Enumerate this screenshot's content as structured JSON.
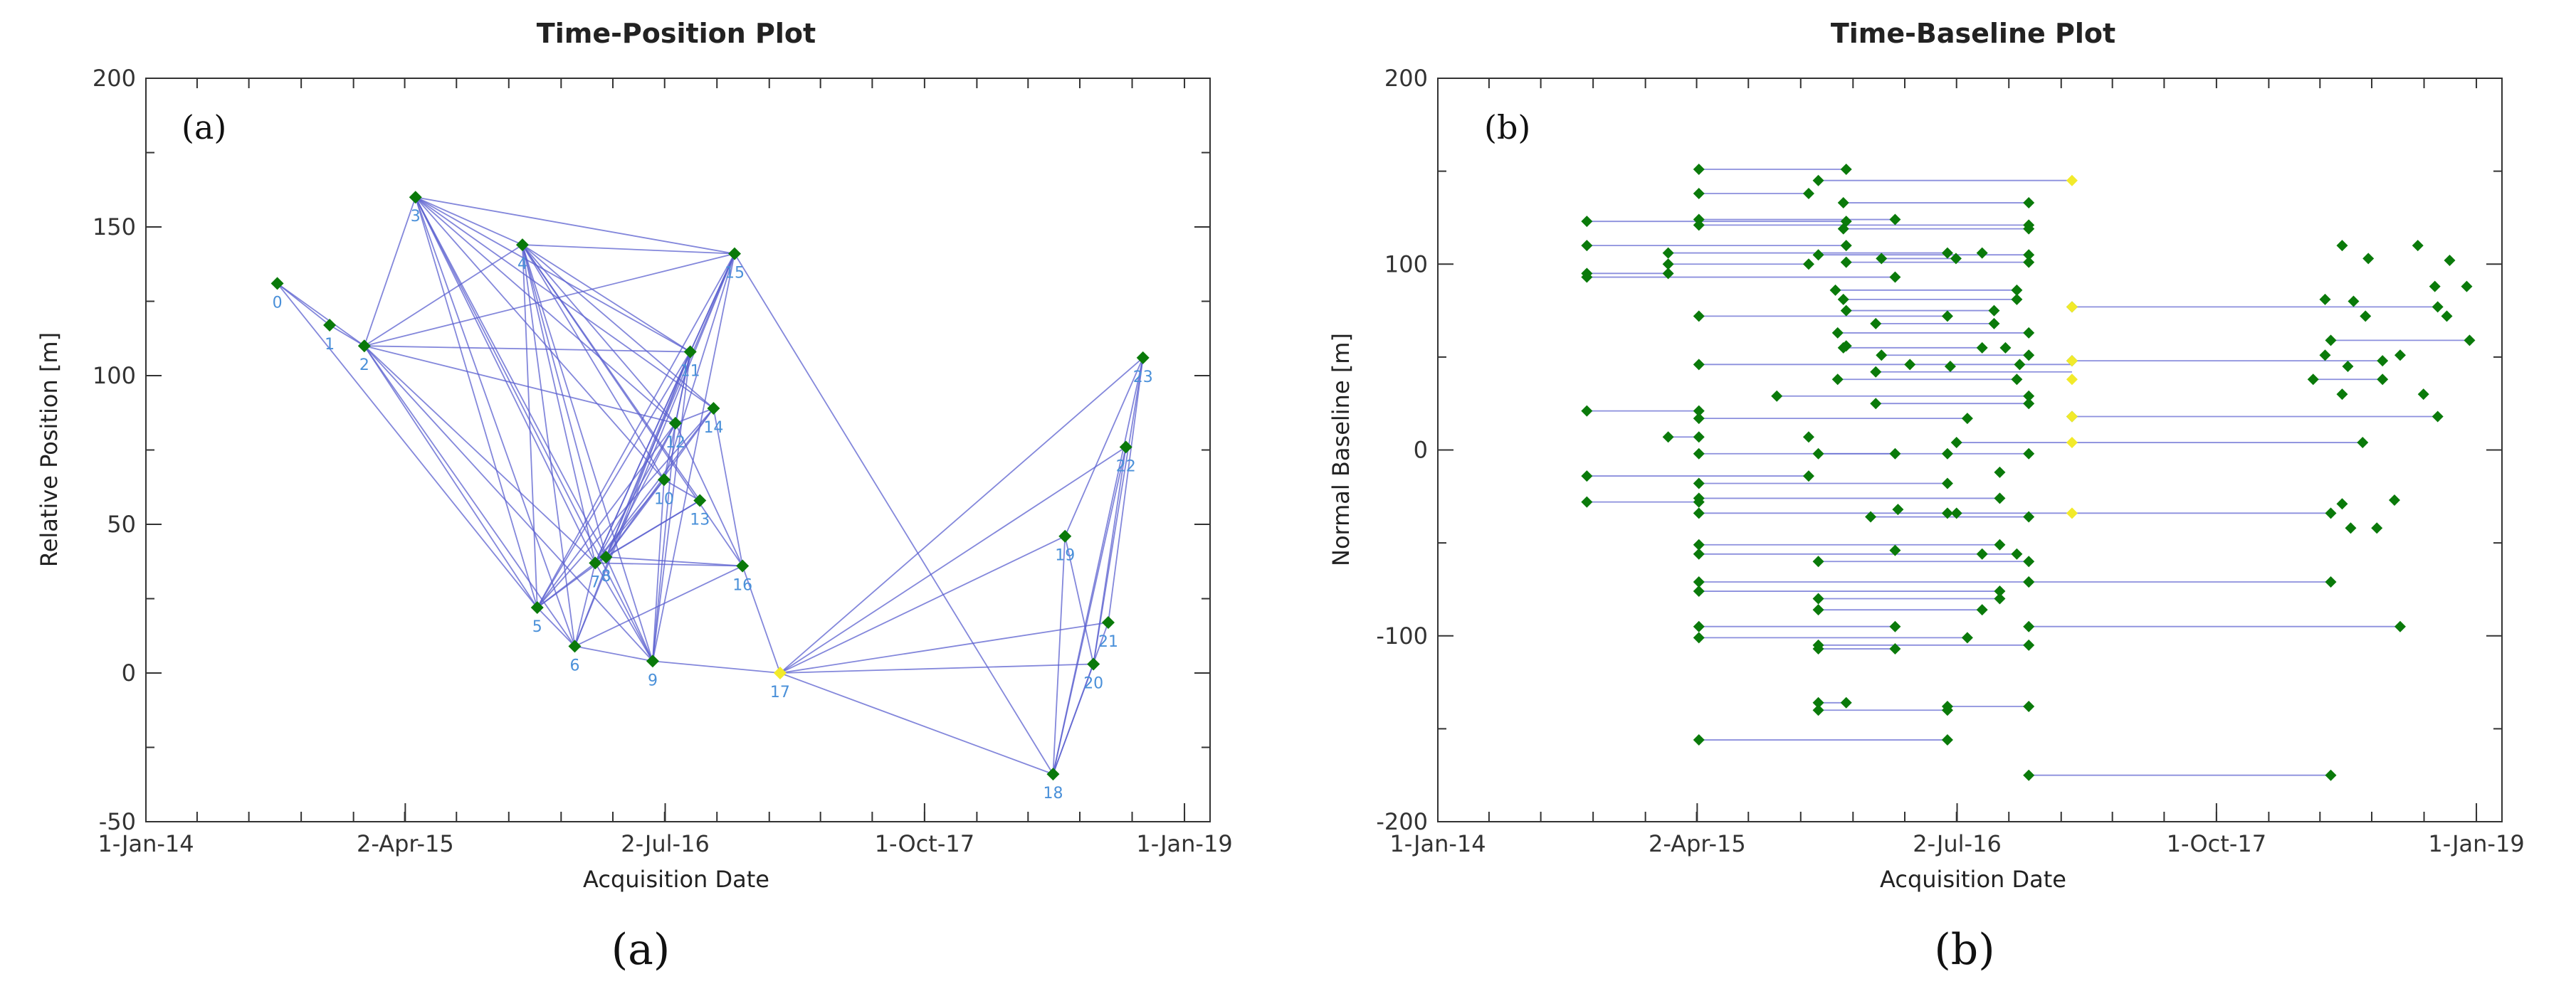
{
  "colors": {
    "edge": "#5a5fcf",
    "point": "#0a7a0a",
    "reference": "#f2ea2a",
    "label": "#4a90d9"
  },
  "chart_data": [
    {
      "type": "scatter",
      "panel": "(a)",
      "title": "Time-Position Plot",
      "xlabel": "Acquisition Date",
      "ylabel": "Relative Position [m]",
      "x_ticks": [
        "1-Jan-14",
        "2-Apr-15",
        "2-Jul-16",
        "1-Oct-17",
        "1-Jan-19"
      ],
      "xlim": [
        "2014-01-01",
        "2019-02-15"
      ],
      "ylim": [
        -50,
        200
      ],
      "y_ticks": [
        "-50",
        "0",
        "50",
        "100",
        "150",
        "200"
      ],
      "reference_point": "17",
      "points": [
        {
          "id": "0",
          "date": "2014-08-20",
          "y": 131
        },
        {
          "id": "1",
          "date": "2014-11-20",
          "y": 117
        },
        {
          "id": "2",
          "date": "2015-01-20",
          "y": 110
        },
        {
          "id": "3",
          "date": "2015-04-20",
          "y": 160
        },
        {
          "id": "4",
          "date": "2015-10-25",
          "y": 144
        },
        {
          "id": "5",
          "date": "2015-11-20",
          "y": 22
        },
        {
          "id": "6",
          "date": "2016-01-25",
          "y": 9
        },
        {
          "id": "7",
          "date": "2016-03-01",
          "y": 37
        },
        {
          "id": "8",
          "date": "2016-03-20",
          "y": 39
        },
        {
          "id": "9",
          "date": "2016-06-10",
          "y": 4
        },
        {
          "id": "10",
          "date": "2016-06-30",
          "y": 65
        },
        {
          "id": "11",
          "date": "2016-08-15",
          "y": 108
        },
        {
          "id": "12",
          "date": "2016-07-20",
          "y": 84
        },
        {
          "id": "13",
          "date": "2016-09-01",
          "y": 58
        },
        {
          "id": "14",
          "date": "2016-09-25",
          "y": 89
        },
        {
          "id": "15",
          "date": "2016-11-01",
          "y": 141
        },
        {
          "id": "16",
          "date": "2016-11-15",
          "y": 36
        },
        {
          "id": "17",
          "date": "2017-01-20",
          "y": 0
        },
        {
          "id": "18",
          "date": "2018-05-15",
          "y": -34
        },
        {
          "id": "19",
          "date": "2018-06-05",
          "y": 46
        },
        {
          "id": "20",
          "date": "2018-07-25",
          "y": 3
        },
        {
          "id": "21",
          "date": "2018-08-20",
          "y": 17
        },
        {
          "id": "22",
          "date": "2018-09-20",
          "y": 76
        },
        {
          "id": "23",
          "date": "2018-10-20",
          "y": 106
        }
      ],
      "edges": [
        [
          "0",
          "1"
        ],
        [
          "0",
          "2"
        ],
        [
          "0",
          "5"
        ],
        [
          "1",
          "2"
        ],
        [
          "2",
          "3"
        ],
        [
          "2",
          "4"
        ],
        [
          "2",
          "5"
        ],
        [
          "2",
          "6"
        ],
        [
          "2",
          "7"
        ],
        [
          "2",
          "9"
        ],
        [
          "2",
          "11"
        ],
        [
          "2",
          "12"
        ],
        [
          "2",
          "15"
        ],
        [
          "3",
          "4"
        ],
        [
          "3",
          "5"
        ],
        [
          "3",
          "6"
        ],
        [
          "3",
          "7"
        ],
        [
          "3",
          "8"
        ],
        [
          "3",
          "9"
        ],
        [
          "3",
          "10"
        ],
        [
          "3",
          "11"
        ],
        [
          "3",
          "12"
        ],
        [
          "3",
          "14"
        ],
        [
          "3",
          "15"
        ],
        [
          "4",
          "5"
        ],
        [
          "4",
          "6"
        ],
        [
          "4",
          "7"
        ],
        [
          "4",
          "8"
        ],
        [
          "4",
          "9"
        ],
        [
          "4",
          "10"
        ],
        [
          "4",
          "11"
        ],
        [
          "4",
          "12"
        ],
        [
          "4",
          "13"
        ],
        [
          "4",
          "14"
        ],
        [
          "4",
          "15"
        ],
        [
          "4",
          "16"
        ],
        [
          "5",
          "6"
        ],
        [
          "5",
          "7"
        ],
        [
          "5",
          "8"
        ],
        [
          "5",
          "11"
        ],
        [
          "5",
          "12"
        ],
        [
          "5",
          "14"
        ],
        [
          "6",
          "7"
        ],
        [
          "6",
          "9"
        ],
        [
          "6",
          "11"
        ],
        [
          "6",
          "15"
        ],
        [
          "7",
          "8"
        ],
        [
          "7",
          "9"
        ],
        [
          "7",
          "10"
        ],
        [
          "7",
          "11"
        ],
        [
          "7",
          "12"
        ],
        [
          "7",
          "13"
        ],
        [
          "7",
          "14"
        ],
        [
          "7",
          "15"
        ],
        [
          "7",
          "16"
        ],
        [
          "8",
          "9"
        ],
        [
          "8",
          "10"
        ],
        [
          "8",
          "11"
        ],
        [
          "8",
          "12"
        ],
        [
          "8",
          "13"
        ],
        [
          "8",
          "14"
        ],
        [
          "8",
          "15"
        ],
        [
          "8",
          "16"
        ],
        [
          "9",
          "10"
        ],
        [
          "9",
          "11"
        ],
        [
          "9",
          "12"
        ],
        [
          "9",
          "15"
        ],
        [
          "9",
          "17"
        ],
        [
          "10",
          "11"
        ],
        [
          "10",
          "13"
        ],
        [
          "10",
          "15"
        ],
        [
          "11",
          "12"
        ],
        [
          "11",
          "15"
        ],
        [
          "12",
          "14"
        ],
        [
          "12",
          "16"
        ],
        [
          "14",
          "16"
        ],
        [
          "15",
          "18"
        ],
        [
          "16",
          "17"
        ],
        [
          "17",
          "18"
        ],
        [
          "17",
          "19"
        ],
        [
          "17",
          "20"
        ],
        [
          "17",
          "21"
        ],
        [
          "17",
          "22"
        ],
        [
          "17",
          "23"
        ],
        [
          "6",
          "16"
        ],
        [
          "5",
          "15"
        ],
        [
          "18",
          "19"
        ],
        [
          "18",
          "20"
        ],
        [
          "18",
          "21"
        ],
        [
          "18",
          "22"
        ],
        [
          "18",
          "23"
        ],
        [
          "19",
          "20"
        ],
        [
          "19",
          "23"
        ],
        [
          "20",
          "22"
        ],
        [
          "21",
          "23"
        ],
        [
          "20",
          "23"
        ]
      ]
    },
    {
      "type": "scatter",
      "panel": "(b)",
      "title": "Time-Baseline Plot",
      "xlabel": "Acquisition Date",
      "ylabel": "Normal Baseline [m]",
      "x_ticks": [
        "1-Jan-14",
        "2-Apr-15",
        "2-Jul-16",
        "1-Oct-17",
        "1-Jan-19"
      ],
      "xlim": [
        "2014-01-01",
        "2019-02-15"
      ],
      "ylim": [
        -200,
        200
      ],
      "y_ticks": [
        "-200",
        "-100",
        "0",
        "100",
        "200"
      ],
      "reference_color": "yellow",
      "pairs": [
        [
          "2015-04-05",
          151,
          "2015-12-20",
          151
        ],
        [
          "2015-11-01",
          145,
          "2017-01-20",
          145
        ],
        [
          "2015-04-05",
          138,
          "2015-10-15",
          138
        ],
        [
          "2015-12-15",
          133,
          "2016-11-05",
          133
        ],
        [
          "2014-09-20",
          123,
          "2015-12-20",
          123
        ],
        [
          "2015-04-05",
          124,
          "2016-03-15",
          124
        ],
        [
          "2015-04-05",
          121,
          "2016-11-05",
          121
        ],
        [
          "2015-12-15",
          119,
          "2016-11-05",
          119
        ],
        [
          "2014-09-20",
          110,
          "2015-12-20",
          110
        ],
        [
          "2014-09-20",
          95,
          "2015-02-10",
          95
        ],
        [
          "2015-02-10",
          106,
          "2016-06-15",
          106
        ],
        [
          "2015-11-01",
          105,
          "2016-11-05",
          105
        ],
        [
          "2015-02-10",
          100,
          "2015-10-15",
          100
        ],
        [
          "2015-12-20",
          101,
          "2016-11-05",
          101
        ],
        [
          "2016-02-20",
          103,
          "2016-06-30",
          103
        ],
        [
          "2014-09-20",
          93,
          "2016-03-15",
          93
        ],
        [
          "2015-12-01",
          86,
          "2016-10-15",
          86
        ],
        [
          "2015-12-15",
          81,
          "2016-10-15",
          81
        ],
        [
          "2017-01-20",
          77,
          "2018-10-25",
          77
        ],
        [
          "2015-12-20",
          75,
          "2016-09-05",
          75
        ],
        [
          "2016-02-10",
          68,
          "2016-09-05",
          68
        ],
        [
          "2015-04-05",
          72,
          "2016-06-15",
          72
        ],
        [
          "2015-12-05",
          63,
          "2016-11-05",
          63
        ],
        [
          "2015-12-15",
          55,
          "2016-08-15",
          55
        ],
        [
          "2016-02-20",
          51,
          "2016-11-05",
          51
        ],
        [
          "2018-04-20",
          59,
          "2018-12-20",
          59
        ],
        [
          "2015-04-05",
          46,
          "2017-01-20",
          46
        ],
        [
          "2017-01-20",
          48,
          "2018-07-20",
          48
        ],
        [
          "2016-02-10",
          42,
          "2017-01-20",
          42
        ],
        [
          "2015-12-05",
          38,
          "2016-10-15",
          38
        ],
        [
          "2018-03-20",
          38,
          "2018-07-20",
          38
        ],
        [
          "2016-02-10",
          25,
          "2016-11-05",
          25
        ],
        [
          "2015-08-20",
          29,
          "2016-11-05",
          29
        ],
        [
          "2014-09-20",
          21,
          "2015-04-05",
          21
        ],
        [
          "2017-01-20",
          18,
          "2018-10-25",
          18
        ],
        [
          "2015-04-05",
          17,
          "2016-07-20",
          17
        ],
        [
          "2015-02-10",
          7,
          "2015-04-05",
          7
        ],
        [
          "2016-07-01",
          4,
          "2018-06-15",
          4
        ],
        [
          "2015-04-05",
          -2,
          "2016-03-15",
          -2
        ],
        [
          "2015-11-01",
          -2,
          "2016-11-05",
          -2
        ],
        [
          "2014-09-20",
          -14,
          "2015-10-15",
          -14
        ],
        [
          "2015-04-05",
          -18,
          "2016-06-15",
          -18
        ],
        [
          "2014-09-20",
          -28,
          "2015-04-05",
          -28
        ],
        [
          "2015-04-05",
          -26,
          "2016-09-15",
          -26
        ],
        [
          "2015-04-05",
          -34,
          "2016-06-15",
          -34
        ],
        [
          "2016-02-01",
          -36,
          "2016-11-05",
          -36
        ],
        [
          "2016-07-01",
          -34,
          "2018-04-20",
          -34
        ],
        [
          "2015-04-05",
          -51,
          "2016-09-15",
          -51
        ],
        [
          "2015-04-05",
          -56,
          "2016-10-15",
          -56
        ],
        [
          "2015-11-01",
          -60,
          "2016-11-05",
          -60
        ],
        [
          "2015-04-05",
          -71,
          "2016-11-05",
          -71
        ],
        [
          "2016-11-05",
          -71,
          "2018-04-20",
          -71
        ],
        [
          "2015-04-05",
          -76,
          "2016-09-15",
          -76
        ],
        [
          "2015-11-01",
          -80,
          "2016-09-15",
          -80
        ],
        [
          "2015-11-01",
          -86,
          "2016-08-15",
          -86
        ],
        [
          "2015-04-05",
          -95,
          "2016-03-15",
          -95
        ],
        [
          "2016-11-05",
          -95,
          "2018-08-20",
          -95
        ],
        [
          "2015-04-05",
          -101,
          "2016-07-20",
          -101
        ],
        [
          "2015-11-01",
          -105,
          "2016-11-05",
          -105
        ],
        [
          "2015-11-01",
          -107,
          "2016-03-15",
          -107
        ],
        [
          "2015-11-01",
          -136,
          "2015-12-20",
          -136
        ],
        [
          "2015-11-01",
          -140,
          "2016-06-15",
          -140
        ],
        [
          "2016-06-15",
          -138,
          "2016-11-05",
          -138
        ],
        [
          "2015-04-05",
          -156,
          "2016-06-15",
          -156
        ],
        [
          "2016-11-05",
          -175,
          "2018-04-20",
          -175
        ]
      ],
      "yellow_points": [
        [
          "2017-01-20",
          145
        ],
        [
          "2017-01-20",
          77
        ],
        [
          "2017-01-20",
          48
        ],
        [
          "2017-01-20",
          38
        ],
        [
          "2017-01-20",
          18
        ],
        [
          "2017-01-20",
          4
        ],
        [
          "2017-01-20",
          -34
        ]
      ],
      "extra_points": [
        [
          "2016-08-15",
          106
        ],
        [
          "2016-06-20",
          45
        ],
        [
          "2016-04-10",
          46
        ],
        [
          "2016-09-25",
          55
        ],
        [
          "2016-10-20",
          46
        ],
        [
          "2015-12-20",
          56
        ],
        [
          "2018-05-10",
          110
        ],
        [
          "2018-09-20",
          110
        ],
        [
          "2018-06-25",
          103
        ],
        [
          "2018-11-15",
          102
        ],
        [
          "2018-10-20",
          88
        ],
        [
          "2018-12-15",
          88
        ],
        [
          "2018-04-10",
          81
        ],
        [
          "2018-05-30",
          80
        ],
        [
          "2018-06-20",
          72
        ],
        [
          "2018-11-10",
          72
        ],
        [
          "2018-04-10",
          51
        ],
        [
          "2018-08-20",
          51
        ],
        [
          "2018-05-20",
          45
        ],
        [
          "2018-05-10",
          30
        ],
        [
          "2018-09-30",
          30
        ],
        [
          "2018-05-10",
          -29
        ],
        [
          "2018-08-10",
          -27
        ],
        [
          "2018-05-25",
          -42
        ],
        [
          "2018-07-10",
          -42
        ],
        [
          "2016-06-15",
          -2
        ],
        [
          "2016-03-15",
          -54
        ],
        [
          "2016-08-15",
          -56
        ],
        [
          "2016-03-20",
          -32
        ],
        [
          "2016-09-15",
          -12
        ],
        [
          "2015-10-15",
          7
        ]
      ]
    }
  ],
  "figure_captions": [
    "(a)",
    "(b)"
  ]
}
